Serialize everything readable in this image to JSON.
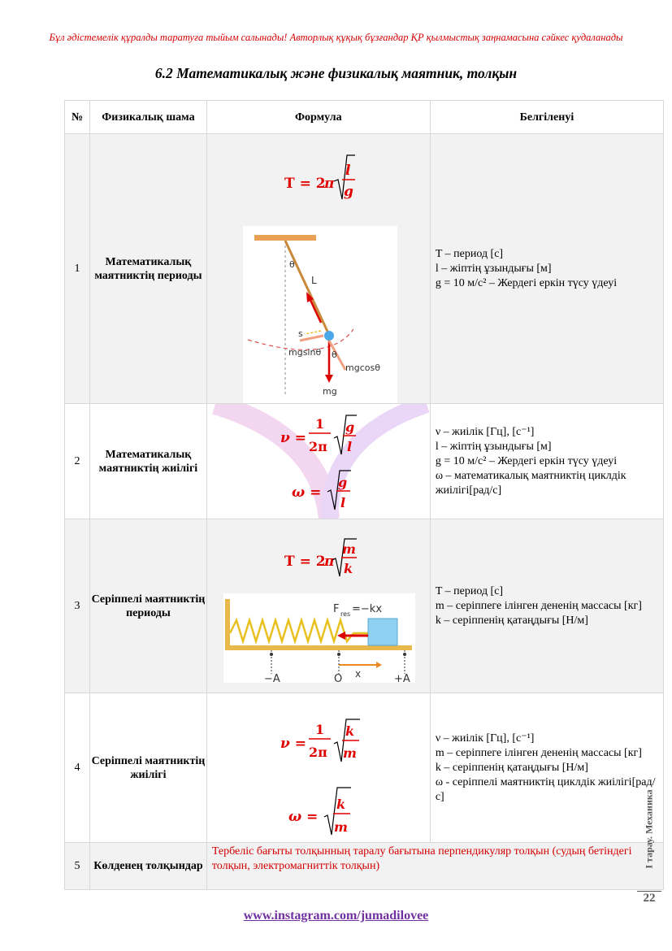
{
  "header": {
    "warning": "Бұл әдістемелік құралды таратуға тыйым салынады! Авторлық құқық бұзғандар ҚР қылмыстық заңнамасына сәйкес  қудаланады",
    "title": "6.2 Математикалық және физикалық маятник, толқын"
  },
  "table": {
    "headers": [
      "№",
      "Физикалық шама",
      "Формула",
      "Белгіленуі"
    ],
    "rows": [
      {
        "num": "1",
        "name": "Математикалық маятниктің периоды",
        "formula": "T = 2π√(l/g)",
        "desc": [
          "T – период [с]",
          "l – жіптің ұзындығы [м]",
          "g = 10 м/с² – Жердегі еркін түсу үдеуі"
        ],
        "figure_labels": [
          "θ",
          "L",
          "s",
          "mgsinθ",
          "θ",
          "mgcosθ",
          "mg"
        ]
      },
      {
        "num": "2",
        "name": "Математикалық маятниктің жиілігі",
        "formula1": "ν = (1/2π)√(g/l)",
        "formula2": "ω = √(g/l)",
        "desc": [
          "ν – жиілік [Гц], [с⁻¹]",
          "l – жіптің ұзындығы [м]",
          "g = 10 м/с² – Жердегі еркін түсу үдеуі",
          "ω – математикалық маятниктің циклдік жиілігі[рад/с]"
        ]
      },
      {
        "num": "3",
        "name": "Серіппелі маятниктің периоды",
        "formula": "T = 2π√(m/k)",
        "desc": [
          "T – период [с]",
          "m – серіппеге ілінген дененің массасы [кг]",
          "k – серіппенің қатаңдығы [Н/м]"
        ],
        "figure_labels": [
          "F",
          "res",
          "=−kx",
          "−A",
          "O",
          "x",
          "+A"
        ]
      },
      {
        "num": "4",
        "name": "Серіппелі маятниктің жиілігі",
        "formula1": "ν = (1/2π)√(k/m)",
        "formula2": "ω = √(k/m)",
        "desc": [
          "ν – жиілік [Гц], [с⁻¹]",
          "m – серіппеге ілінген дененің массасы [кг]",
          "k – серіппенің қатаңдығы [Н/м]",
          "ω - серіппелі маятниктің циклдік жиілігі[рад/с]"
        ]
      },
      {
        "num": "5",
        "name": "Көлденең толқындар",
        "text": "Тербеліс бағыты толқынның таралу бағытына перпендикуляр толқын (судың бетіндегі толқын, электромагниттік толқын)"
      }
    ]
  },
  "footer": {
    "link": "www.instagram.com/jumadilovee",
    "side_label": "I тарау. Механика",
    "page_number": "22"
  }
}
